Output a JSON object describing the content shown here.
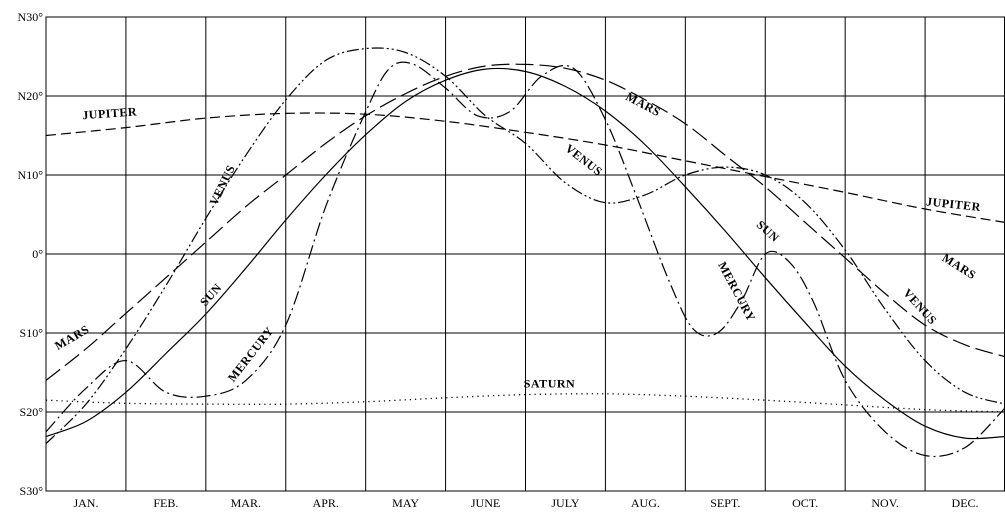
{
  "chart_data": {
    "type": "line",
    "title": "",
    "xlabel": "",
    "ylabel": "",
    "grid": true,
    "x_unit": "months",
    "xlim": [
      0,
      12
    ],
    "ylim": [
      -30,
      30
    ],
    "months": [
      "JAN.",
      "FEB.",
      "MAR.",
      "APR.",
      "MAY",
      "JUNE",
      "JULY",
      "AUG.",
      "SEPT.",
      "OCT.",
      "NOV.",
      "DEC."
    ],
    "y_ticks": [
      {
        "value": 30,
        "label": "N30°"
      },
      {
        "value": 20,
        "label": "N20°"
      },
      {
        "value": 10,
        "label": "N10°"
      },
      {
        "value": 0,
        "label": "0°"
      },
      {
        "value": -10,
        "label": "S10°"
      },
      {
        "value": -20,
        "label": "S20°"
      },
      {
        "value": -30,
        "label": "S30°"
      }
    ],
    "series": [
      {
        "name": "SUN",
        "line_style": "solid",
        "x": [
          0,
          0.5,
          1,
          1.5,
          2,
          2.5,
          3,
          3.5,
          4,
          4.5,
          5,
          5.5,
          6,
          6.5,
          7,
          7.5,
          8,
          8.5,
          9,
          9.5,
          10,
          10.5,
          11,
          11.5,
          12
        ],
        "y": [
          -23.1,
          -21.2,
          -17.5,
          -12.6,
          -7.6,
          -1.8,
          4.3,
          10.0,
          15.1,
          19.3,
          22.0,
          23.4,
          23.1,
          21.2,
          18.1,
          13.8,
          8.5,
          2.9,
          -3.0,
          -8.7,
          -14.2,
          -18.5,
          -21.8,
          -23.3,
          -23.1
        ],
        "labels": [
          {
            "text": "SUN",
            "x": 2.1,
            "y": -5.5,
            "angle": -48
          },
          {
            "text": "SUN",
            "x": 9.0,
            "y": 2.5,
            "angle": 42
          }
        ]
      },
      {
        "name": "MERCURY",
        "line_style": "dash-dot",
        "x": [
          0,
          0.5,
          1,
          1.5,
          2,
          2.5,
          3,
          3.5,
          4,
          4.3,
          4.6,
          5,
          5.4,
          5.8,
          6.2,
          6.6,
          7,
          7.4,
          7.8,
          8.1,
          8.4,
          8.7,
          9,
          9.3,
          9.6,
          10,
          10.5,
          11,
          11.5,
          12
        ],
        "y": [
          -22.5,
          -17.0,
          -13.5,
          -17.5,
          -18.0,
          -16.0,
          -9.0,
          6.0,
          18.0,
          23.5,
          24.0,
          21.0,
          17.5,
          18.0,
          22.5,
          23.5,
          17.0,
          7.0,
          -3.5,
          -9.5,
          -10.0,
          -6.0,
          0.0,
          -1.0,
          -6.0,
          -16.0,
          -22.5,
          -25.5,
          -24.5,
          -19.5
        ],
        "labels": [
          {
            "text": "MERCURY",
            "x": 2.6,
            "y": -13.0,
            "angle": -52
          },
          {
            "text": "MERCURY",
            "x": 8.6,
            "y": -5.0,
            "angle": 62
          }
        ]
      },
      {
        "name": "VENUS",
        "line_style": "dash-dot-dot",
        "x": [
          0,
          0.5,
          1,
          1.5,
          2,
          2.5,
          3,
          3.5,
          4,
          4.5,
          5,
          5.5,
          6,
          6.5,
          7,
          7.5,
          8,
          8.5,
          9,
          9.5,
          10,
          10.5,
          11,
          11.5,
          12
        ],
        "y": [
          -24.0,
          -19.0,
          -12.0,
          -4.0,
          4.5,
          12.5,
          19.5,
          24.5,
          26.0,
          25.5,
          22.5,
          17.5,
          14.0,
          9.0,
          6.5,
          7.5,
          10.0,
          11.0,
          10.0,
          6.5,
          0.5,
          -7.0,
          -13.5,
          -17.5,
          -19.0
        ],
        "labels": [
          {
            "text": "VENUS",
            "x": 2.25,
            "y": 8.5,
            "angle": -64
          },
          {
            "text": "VENUS",
            "x": 6.7,
            "y": 11.5,
            "angle": 38
          },
          {
            "text": "VENUS",
            "x": 10.9,
            "y": -7.0,
            "angle": 48
          }
        ]
      },
      {
        "name": "MARS",
        "line_style": "long-dash",
        "x": [
          0,
          0.5,
          1,
          1.5,
          2,
          2.5,
          3,
          3.5,
          4,
          4.5,
          5,
          5.5,
          6,
          6.5,
          7,
          7.5,
          8,
          8.5,
          9,
          9.5,
          10,
          10.5,
          11,
          11.5,
          12
        ],
        "y": [
          -16.0,
          -12.0,
          -7.5,
          -3.0,
          1.5,
          6.0,
          10.0,
          14.0,
          17.5,
          20.3,
          22.5,
          23.8,
          24.0,
          23.5,
          22.0,
          19.5,
          16.5,
          12.5,
          8.5,
          4.0,
          -0.5,
          -5.0,
          -9.0,
          -11.5,
          -13.0
        ],
        "labels": [
          {
            "text": "MARS",
            "x": 0.35,
            "y": -11.0,
            "angle": -30
          },
          {
            "text": "MARS",
            "x": 7.45,
            "y": 18.5,
            "angle": 28
          },
          {
            "text": "MARS",
            "x": 11.4,
            "y": -2.0,
            "angle": 32
          }
        ]
      },
      {
        "name": "JUPITER",
        "line_style": "dash",
        "x": [
          0,
          1,
          2,
          3,
          4,
          5,
          6,
          7,
          8,
          9,
          10,
          11,
          12
        ],
        "y": [
          15.0,
          16.0,
          17.2,
          17.8,
          17.7,
          16.8,
          15.4,
          13.8,
          11.8,
          9.8,
          7.8,
          5.7,
          4.0
        ],
        "labels": [
          {
            "text": "JUPITER",
            "x": 0.8,
            "y": 17.3,
            "angle": -4
          },
          {
            "text": "JUPITER",
            "x": 11.35,
            "y": 5.8,
            "angle": 6
          }
        ]
      },
      {
        "name": "SATURN",
        "line_style": "dotted",
        "x": [
          0,
          1,
          2,
          3,
          4,
          5,
          6,
          7,
          8,
          9,
          10,
          11,
          12
        ],
        "y": [
          -18.5,
          -18.9,
          -19.0,
          -19.0,
          -18.7,
          -18.2,
          -17.8,
          -17.7,
          -18.0,
          -18.5,
          -19.1,
          -19.7,
          -20.0
        ],
        "labels": [
          {
            "text": "SATURN",
            "x": 6.3,
            "y": -16.9,
            "angle": 0
          }
        ]
      }
    ]
  }
}
